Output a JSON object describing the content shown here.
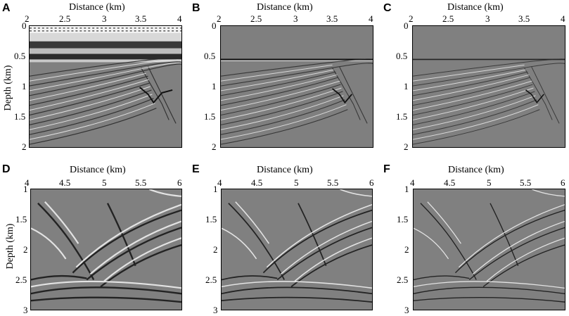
{
  "panels": [
    {
      "label": "A",
      "xlabel": "Distance (km)",
      "ylabel": "Depth (km)",
      "xticks": [
        "2",
        "2.5",
        "3",
        "3.5",
        "4"
      ],
      "yticks": [
        "0",
        "0.5",
        "1",
        "1.5",
        "2"
      ]
    },
    {
      "label": "B",
      "xlabel": "Distance (km)",
      "xticks": [
        "2",
        "2.5",
        "3",
        "3.5",
        "4"
      ],
      "yticks": [
        "0",
        "0.5",
        "1",
        "1.5",
        "2"
      ]
    },
    {
      "label": "C",
      "xlabel": "Distance (km)",
      "xticks": [
        "2",
        "2.5",
        "3",
        "3.5",
        "4"
      ],
      "yticks": [
        "0",
        "0.5",
        "1",
        "1.5",
        "2"
      ]
    },
    {
      "label": "D",
      "xlabel": "Distance (km)",
      "ylabel": "Depth (km)",
      "xticks": [
        "4",
        "4.5",
        "5",
        "5.5",
        "6"
      ],
      "yticks": [
        "1",
        "1.5",
        "2",
        "2.5",
        "3"
      ]
    },
    {
      "label": "E",
      "xlabel": "Distance (km)",
      "xticks": [
        "4",
        "4.5",
        "5",
        "5.5",
        "6"
      ],
      "yticks": [
        "1",
        "1.5",
        "2",
        "2.5",
        "3"
      ]
    },
    {
      "label": "F",
      "xlabel": "Distance (km)",
      "xticks": [
        "4",
        "4.5",
        "5",
        "5.5",
        "6"
      ],
      "yticks": [
        "1",
        "1.5",
        "2",
        "2.5",
        "3"
      ]
    }
  ],
  "colors": {
    "background": "#808080",
    "dark": "#1a1a1a",
    "light": "#f2f2f2"
  }
}
